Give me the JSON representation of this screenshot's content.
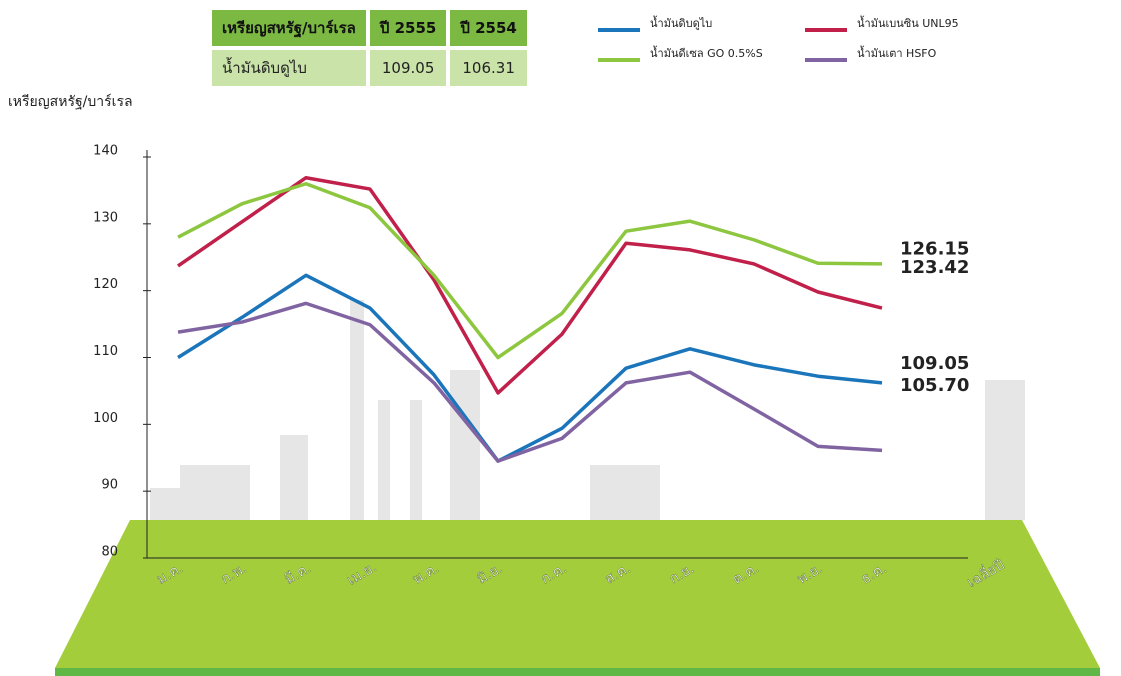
{
  "table": {
    "header": [
      "เหรียญสหรัฐ/บาร์เรล",
      "ปี 2555",
      "ปี 2554"
    ],
    "rows": [
      [
        "น้ำมันดิบดูไบ",
        "109.05",
        "106.31"
      ]
    ]
  },
  "chart_data": {
    "type": "line",
    "y_label": "เหรียญสหรัฐ/บาร์เรล",
    "categories": [
      "ม.ค.",
      "ก.พ.",
      "มี.ค.",
      "เม.ย.",
      "พ.ค.",
      "มิ.ย.",
      "ก.ค.",
      "ส.ค.",
      "ก.ย.",
      "ต.ค.",
      "พ.ย.",
      "ธ.ค."
    ],
    "average_category": "เฉลี่ยปี",
    "ylim": [
      80,
      140
    ],
    "yticks": [
      80,
      90,
      100,
      110,
      120,
      130,
      140
    ],
    "series": [
      {
        "name": "น้ำมันดิบดูไบ",
        "color": "#1b75bb",
        "values": [
          110.0,
          116.0,
          122.3,
          117.4,
          107.4,
          94.5,
          99.4,
          108.4,
          111.3,
          108.9,
          107.2,
          106.2
        ],
        "average": 109.05
      },
      {
        "name": "น้ำมันเบนซิน UNL95",
        "color": "#c0204a",
        "values": [
          123.7,
          130.3,
          136.9,
          135.2,
          121.6,
          104.7,
          113.5,
          127.1,
          126.1,
          124.0,
          119.8,
          117.4
        ],
        "average": 123.42
      },
      {
        "name": "น้ำมันดีเซล GO 0.5%S",
        "color": "#8dc63f",
        "values": [
          128.0,
          133.0,
          136.0,
          132.4,
          122.3,
          110.0,
          116.6,
          128.9,
          130.4,
          127.6,
          124.1,
          124.0
        ],
        "average": 126.15
      },
      {
        "name": "น้ำมันเตา HSFO",
        "color": "#8064a2",
        "values": [
          113.8,
          115.3,
          118.1,
          114.9,
          106.2,
          94.5,
          97.9,
          106.2,
          107.8,
          102.3,
          96.7,
          96.1
        ],
        "average": 105.7,
        "average_label": "105.70"
      }
    ]
  }
}
